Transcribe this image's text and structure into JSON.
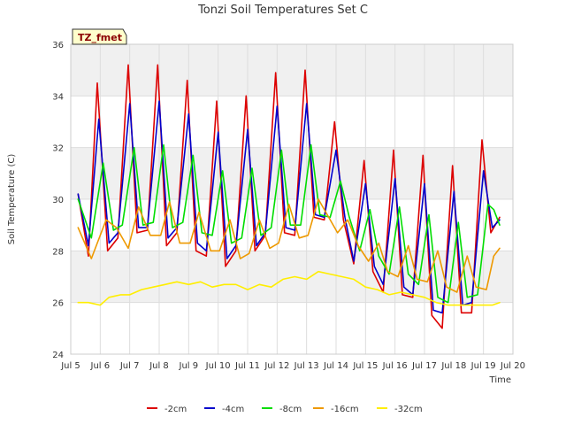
{
  "chart_data": {
    "type": "line",
    "title": "Tonzi Soil Temperatures Set C",
    "xlabel": "Time",
    "ylabel": "Soil Temperature (C)",
    "ylim": [
      24,
      36
    ],
    "xlim": [
      5,
      20
    ],
    "grid": true,
    "legend_placement": "bottom",
    "tag": "TZ_fmet",
    "x_ticks": [
      {
        "value": 5,
        "label": "Jul 5"
      },
      {
        "value": 6,
        "label": "Jul 6"
      },
      {
        "value": 7,
        "label": "Jul 7"
      },
      {
        "value": 8,
        "label": "Jul 8"
      },
      {
        "value": 9,
        "label": "Jul 9"
      },
      {
        "value": 10,
        "label": "Jul 10"
      },
      {
        "value": 11,
        "label": "Jul 11"
      },
      {
        "value": 12,
        "label": "Jul 12"
      },
      {
        "value": 13,
        "label": "Jul 13"
      },
      {
        "value": 14,
        "label": "Jul 14"
      },
      {
        "value": 15,
        "label": "Jul 15"
      },
      {
        "value": 16,
        "label": "Jul 16"
      },
      {
        "value": 17,
        "label": "Jul 17"
      },
      {
        "value": 18,
        "label": "Jul 18"
      },
      {
        "value": 19,
        "label": "Jul 19"
      },
      {
        "value": 20,
        "label": "Jul 20"
      }
    ],
    "y_ticks": [
      24,
      26,
      28,
      30,
      32,
      34,
      36
    ],
    "series": [
      {
        "name": "-2cm",
        "color": "#dd0000",
        "x": [
          5.25,
          5.6,
          5.9,
          6.25,
          6.6,
          6.95,
          7.25,
          7.6,
          7.95,
          8.25,
          8.6,
          8.95,
          9.25,
          9.6,
          9.95,
          10.25,
          10.6,
          10.95,
          11.25,
          11.6,
          11.95,
          12.25,
          12.6,
          12.95,
          13.25,
          13.6,
          13.95,
          14.25,
          14.6,
          14.95,
          15.25,
          15.6,
          15.95,
          16.25,
          16.6,
          16.95,
          17.25,
          17.6,
          17.95,
          18.25,
          18.6,
          18.95,
          19.25,
          19.55
        ],
        "y": [
          30.2,
          27.8,
          34.5,
          28.0,
          28.5,
          35.2,
          28.7,
          28.8,
          35.2,
          28.2,
          28.7,
          34.6,
          28.0,
          27.8,
          33.8,
          27.4,
          28.0,
          34.0,
          28.0,
          28.6,
          34.9,
          28.7,
          28.6,
          35.0,
          29.3,
          29.2,
          33.0,
          29.2,
          27.5,
          31.5,
          27.2,
          26.4,
          31.9,
          26.3,
          26.2,
          31.7,
          25.5,
          25.0,
          31.3,
          25.6,
          25.6,
          32.3,
          28.7,
          29.3
        ]
      },
      {
        "name": "-4cm",
        "color": "#0000cc",
        "x": [
          5.25,
          5.6,
          5.95,
          6.3,
          6.6,
          7.0,
          7.3,
          7.6,
          8.0,
          8.3,
          8.6,
          9.0,
          9.3,
          9.6,
          10.0,
          10.3,
          10.6,
          11.0,
          11.3,
          11.6,
          12.0,
          12.3,
          12.6,
          13.0,
          13.3,
          13.6,
          14.0,
          14.3,
          14.6,
          15.0,
          15.3,
          15.6,
          16.0,
          16.3,
          16.6,
          17.0,
          17.3,
          17.6,
          18.0,
          18.3,
          18.6,
          19.0,
          19.3,
          19.55
        ],
        "y": [
          30.2,
          28.2,
          33.1,
          28.3,
          28.7,
          33.7,
          28.9,
          28.9,
          33.8,
          28.5,
          28.9,
          33.3,
          28.3,
          28.0,
          32.6,
          27.7,
          28.2,
          32.7,
          28.2,
          28.7,
          33.6,
          28.9,
          28.8,
          33.7,
          29.4,
          29.3,
          31.9,
          29.3,
          27.6,
          30.6,
          27.4,
          26.7,
          30.8,
          26.6,
          26.3,
          30.6,
          25.7,
          25.6,
          30.3,
          25.9,
          26.0,
          31.1,
          28.9,
          29.2
        ]
      },
      {
        "name": "-8cm",
        "color": "#00dd00",
        "x": [
          5.25,
          5.7,
          6.1,
          6.45,
          6.75,
          7.15,
          7.45,
          7.8,
          8.15,
          8.45,
          8.8,
          9.15,
          9.45,
          9.8,
          10.15,
          10.45,
          10.8,
          11.15,
          11.45,
          11.8,
          12.15,
          12.45,
          12.8,
          13.15,
          13.45,
          13.8,
          14.15,
          14.45,
          14.8,
          15.15,
          15.45,
          15.8,
          16.15,
          16.45,
          16.8,
          17.15,
          17.45,
          17.8,
          18.15,
          18.45,
          18.8,
          19.15,
          19.35,
          19.55
        ],
        "y": [
          30.0,
          28.5,
          31.4,
          28.8,
          29.0,
          32.0,
          29.0,
          29.1,
          32.1,
          28.9,
          29.1,
          31.7,
          28.7,
          28.6,
          31.1,
          28.3,
          28.5,
          31.2,
          28.6,
          28.9,
          31.9,
          29.0,
          29.0,
          32.1,
          29.4,
          29.3,
          30.7,
          29.3,
          28.0,
          29.6,
          27.8,
          27.1,
          29.7,
          27.1,
          26.7,
          29.4,
          26.2,
          26.0,
          29.1,
          26.2,
          26.3,
          29.8,
          29.6,
          29.0
        ]
      },
      {
        "name": "-16cm",
        "color": "#ee9900",
        "x": [
          5.25,
          5.7,
          6.2,
          6.55,
          6.95,
          7.3,
          7.7,
          8.05,
          8.35,
          8.7,
          9.05,
          9.35,
          9.75,
          10.05,
          10.4,
          10.75,
          11.05,
          11.4,
          11.75,
          12.05,
          12.4,
          12.75,
          13.05,
          13.4,
          13.75,
          14.05,
          14.4,
          14.75,
          15.1,
          15.45,
          15.75,
          16.1,
          16.45,
          16.75,
          17.1,
          17.45,
          17.75,
          18.1,
          18.45,
          18.75,
          19.1,
          19.35,
          19.55
        ],
        "y": [
          28.9,
          27.7,
          29.2,
          28.9,
          28.1,
          29.7,
          28.6,
          28.6,
          29.9,
          28.3,
          28.3,
          29.5,
          28.0,
          28.0,
          29.2,
          27.7,
          27.9,
          29.2,
          28.1,
          28.3,
          29.8,
          28.5,
          28.6,
          30.0,
          29.3,
          28.7,
          29.2,
          28.2,
          27.6,
          28.3,
          27.2,
          27.0,
          28.2,
          26.9,
          26.8,
          28.0,
          26.6,
          26.4,
          27.8,
          26.6,
          26.5,
          27.8,
          28.1
        ]
      },
      {
        "name": "-32cm",
        "color": "#ffee00",
        "x": [
          5.25,
          5.6,
          6.0,
          6.3,
          6.7,
          7.0,
          7.4,
          7.8,
          8.2,
          8.6,
          9.0,
          9.4,
          9.8,
          10.2,
          10.6,
          11.0,
          11.4,
          11.8,
          12.2,
          12.6,
          13.0,
          13.4,
          13.8,
          14.2,
          14.6,
          15.0,
          15.4,
          15.8,
          16.2,
          16.6,
          17.0,
          17.4,
          17.8,
          18.2,
          18.6,
          19.0,
          19.3,
          19.55
        ],
        "y": [
          26.0,
          26.0,
          25.9,
          26.2,
          26.3,
          26.3,
          26.5,
          26.6,
          26.7,
          26.8,
          26.7,
          26.8,
          26.6,
          26.7,
          26.7,
          26.5,
          26.7,
          26.6,
          26.9,
          27.0,
          26.9,
          27.2,
          27.1,
          27.0,
          26.9,
          26.6,
          26.5,
          26.3,
          26.4,
          26.3,
          26.2,
          26.0,
          25.9,
          25.9,
          25.9,
          25.9,
          25.9,
          26.0
        ]
      }
    ]
  }
}
